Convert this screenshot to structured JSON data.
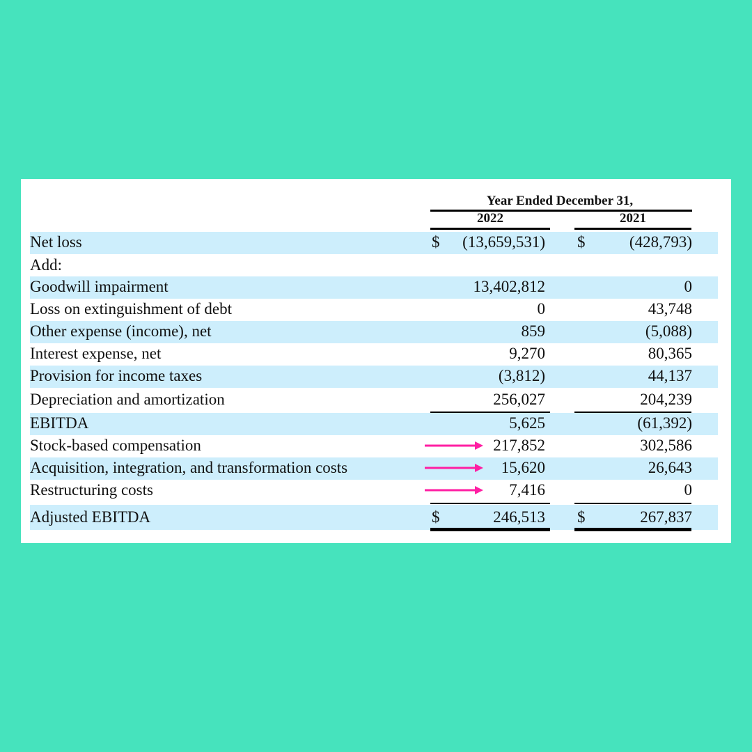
{
  "colors": {
    "background": "#46e3bd",
    "card": "#ffffff",
    "row_shade": "#cdeefc",
    "arrow": "#ff1fa3"
  },
  "table": {
    "period_header": "Year Ended December 31,",
    "year_1": "2022",
    "year_2": "2021",
    "rows": [
      {
        "label": "Net loss",
        "cur1": "$",
        "v2022": "(13,659,531)",
        "cur2": "$",
        "v2021": "(428,793)"
      },
      {
        "label": "Add:",
        "v2022": "",
        "v2021": ""
      },
      {
        "label": "Goodwill impairment",
        "v2022": "13,402,812",
        "v2021": "0"
      },
      {
        "label": "Loss on extinguishment of debt",
        "v2022": "0",
        "v2021": "43,748"
      },
      {
        "label": "Other expense (income), net",
        "v2022": "859",
        "v2021": "(5,088)"
      },
      {
        "label": "Interest expense, net",
        "v2022": "9,270",
        "v2021": "80,365"
      },
      {
        "label": "Provision for income taxes",
        "v2022": "(3,812)",
        "v2021": "44,137"
      },
      {
        "label": "Depreciation and amortization",
        "v2022": "256,027",
        "v2021": "204,239"
      },
      {
        "label": "EBITDA",
        "v2022": "5,625",
        "v2021": "(61,392)"
      },
      {
        "label": "Stock-based compensation",
        "v2022": "217,852",
        "v2021": "302,586",
        "highlight_icon": "arrow-right-icon"
      },
      {
        "label": "Acquisition, integration, and transformation costs",
        "v2022": "15,620",
        "v2021": "26,643",
        "highlight_icon": "arrow-right-icon"
      },
      {
        "label": "Restructuring costs",
        "v2022": "7,416",
        "v2021": "0",
        "highlight_icon": "arrow-right-icon"
      },
      {
        "label": "Adjusted EBITDA",
        "cur1": "$",
        "v2022": "246,513",
        "cur2": "$",
        "v2021": "267,837"
      }
    ]
  }
}
